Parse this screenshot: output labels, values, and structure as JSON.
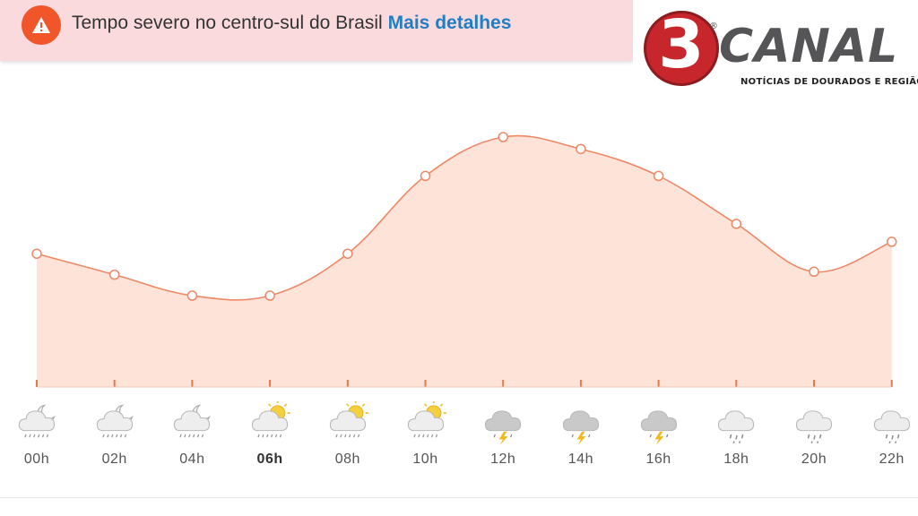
{
  "alert": {
    "icon": "warning-icon",
    "text": "Tempo severo no centro-sul do Brasil",
    "link": "Mais detalhes",
    "background": "#fadadd",
    "icon_color": "#f0562a",
    "link_color": "#1f7fc4"
  },
  "logo": {
    "number": "3",
    "name": "CANAL",
    "tagline": "NOTÍCIAS DE DOURADOS E REGIÃO",
    "registered": "®"
  },
  "chart_data": {
    "type": "area",
    "categories": [
      "00h",
      "02h",
      "04h",
      "06h",
      "08h",
      "10h",
      "12h",
      "14h",
      "16h",
      "18h",
      "20h",
      "22h"
    ],
    "values": [
      0.61,
      0.54,
      0.47,
      0.47,
      0.61,
      0.87,
      1.0,
      0.96,
      0.87,
      0.71,
      0.55,
      0.65
    ],
    "value_scale": "relative (no axis values printed)",
    "ylim": [
      0,
      1
    ],
    "grid": false,
    "line_color": "#ee8866",
    "fill_color": "#fde3d8"
  },
  "forecast": {
    "current_hour": "06h",
    "hours": [
      {
        "label": "00h",
        "icon": "night-cloud-rain-icon"
      },
      {
        "label": "02h",
        "icon": "night-cloud-rain-icon"
      },
      {
        "label": "04h",
        "icon": "night-cloud-rain-icon"
      },
      {
        "label": "06h",
        "icon": "sun-cloud-rain-icon"
      },
      {
        "label": "08h",
        "icon": "sun-cloud-rain-icon"
      },
      {
        "label": "10h",
        "icon": "sun-cloud-rain-icon"
      },
      {
        "label": "12h",
        "icon": "thunderstorm-icon"
      },
      {
        "label": "14h",
        "icon": "thunderstorm-icon"
      },
      {
        "label": "16h",
        "icon": "thunderstorm-icon"
      },
      {
        "label": "18h",
        "icon": "cloud-rain-icon"
      },
      {
        "label": "20h",
        "icon": "cloud-rain-icon"
      },
      {
        "label": "22h",
        "icon": "cloud-rain-icon"
      }
    ]
  }
}
